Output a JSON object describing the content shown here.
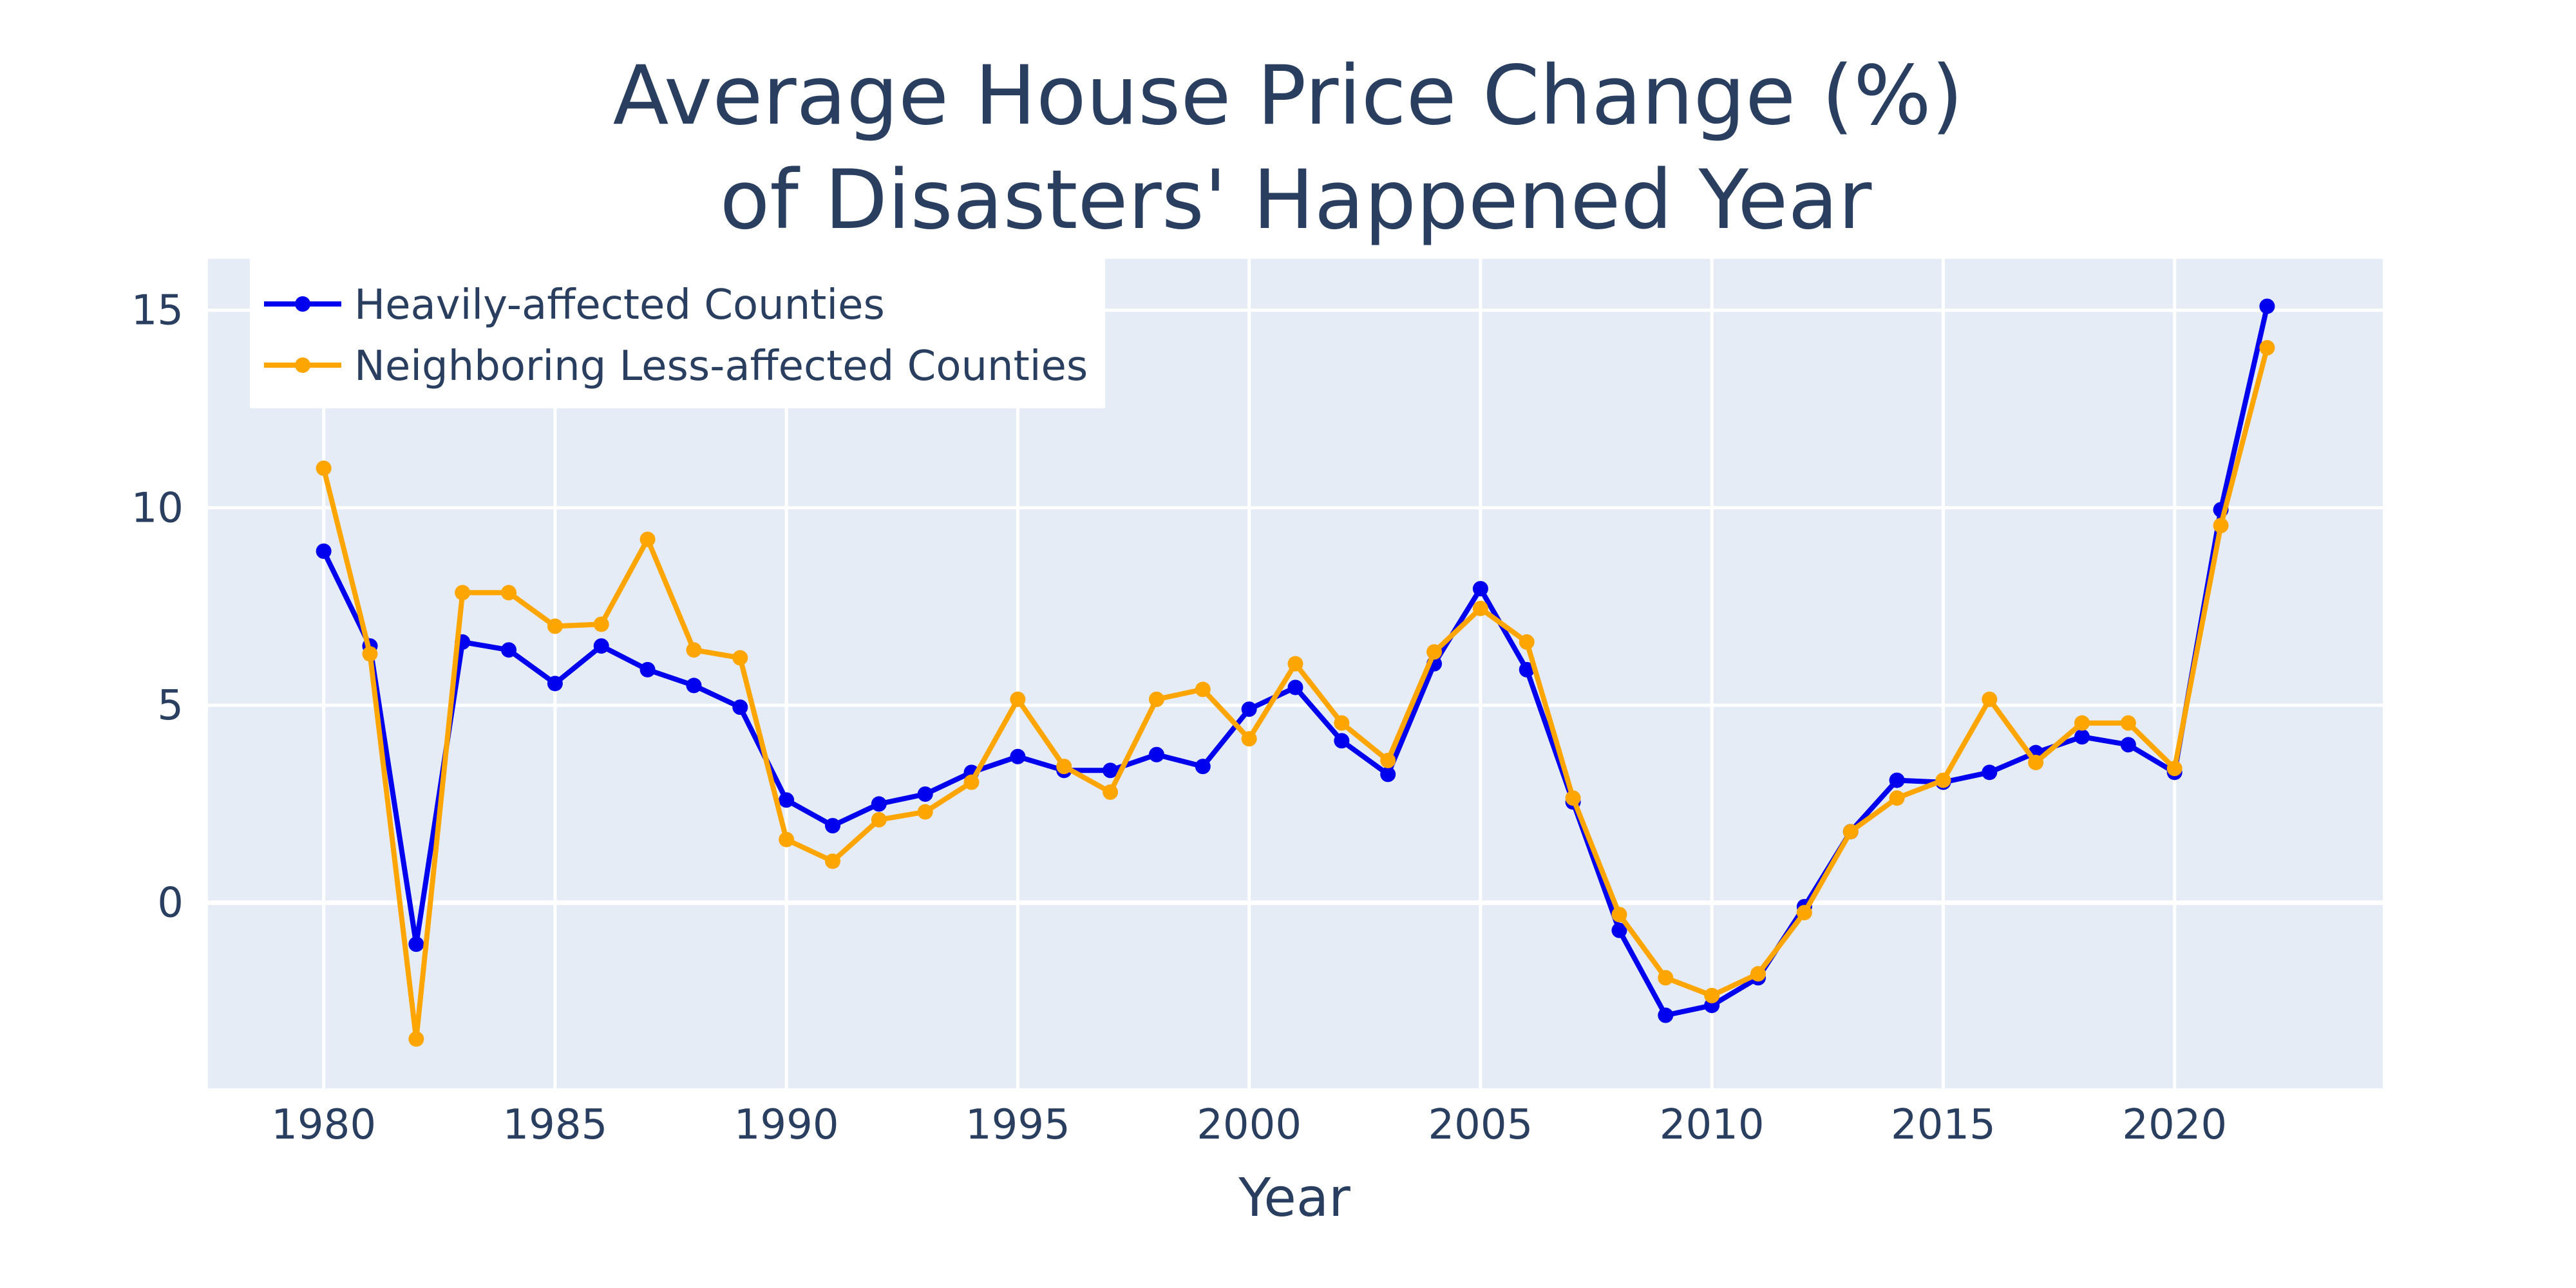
{
  "chart_data": {
    "type": "line",
    "title_lines": [
      "Average House Price Change (%)",
      "of Disasters' Happened Year"
    ],
    "xlabel": "Year",
    "ylabel": "",
    "xlim": [
      1977.5,
      2024.5
    ],
    "ylim": [
      -4.7,
      16.3
    ],
    "xticks": [
      1980,
      1985,
      1990,
      1995,
      2000,
      2005,
      2010,
      2015,
      2020
    ],
    "yticks": [
      0,
      5,
      10,
      15
    ],
    "grid": true,
    "legend_position": "top-left",
    "plot_bgcolor": "#e5ecf6",
    "x": [
      1980,
      1981,
      1982,
      1983,
      1984,
      1985,
      1986,
      1987,
      1988,
      1989,
      1990,
      1991,
      1992,
      1993,
      1994,
      1995,
      1996,
      1997,
      1998,
      1999,
      2000,
      2001,
      2002,
      2003,
      2004,
      2005,
      2006,
      2007,
      2008,
      2009,
      2010,
      2011,
      2012,
      2013,
      2014,
      2015,
      2016,
      2017,
      2018,
      2019,
      2020,
      2021,
      2022
    ],
    "series": [
      {
        "name": "Heavily-affected Counties",
        "color": "#0000ee",
        "values": [
          8.9,
          6.5,
          -1.05,
          6.6,
          6.4,
          5.55,
          6.5,
          5.9,
          5.5,
          4.95,
          2.6,
          1.95,
          2.5,
          2.75,
          3.3,
          3.7,
          3.35,
          3.35,
          3.75,
          3.45,
          4.9,
          5.45,
          4.1,
          3.25,
          6.05,
          7.95,
          5.9,
          2.55,
          -0.7,
          -2.85,
          -2.6,
          -1.9,
          -0.1,
          1.8,
          3.1,
          3.05,
          3.3,
          3.8,
          4.2,
          4.0,
          3.3,
          9.95,
          15.1
        ]
      },
      {
        "name": "Neighboring Less-affected Counties",
        "color": "#ffa500",
        "values": [
          11.0,
          6.3,
          -3.45,
          7.85,
          7.85,
          7.0,
          7.05,
          9.2,
          6.4,
          6.2,
          1.6,
          1.05,
          2.1,
          2.3,
          3.05,
          5.15,
          3.45,
          2.8,
          5.15,
          5.4,
          4.15,
          6.05,
          4.55,
          3.6,
          6.35,
          7.45,
          6.6,
          2.65,
          -0.3,
          -1.9,
          -2.35,
          -1.8,
          -0.25,
          1.8,
          2.65,
          3.1,
          5.15,
          3.55,
          4.55,
          4.55,
          3.4,
          9.55,
          14.05
        ]
      }
    ]
  }
}
